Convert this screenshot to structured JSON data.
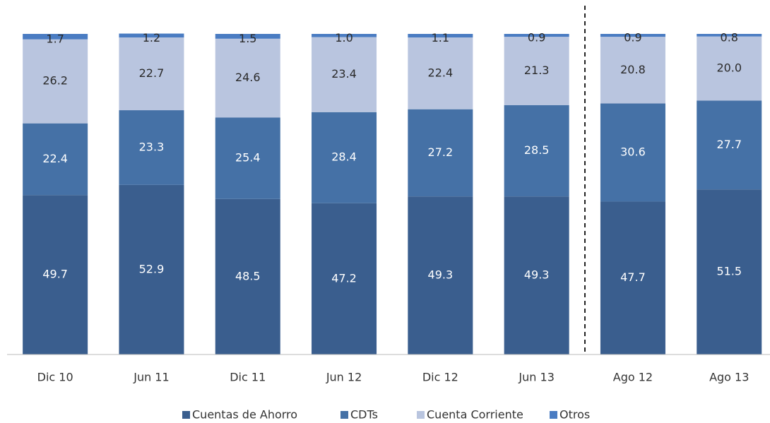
{
  "chart_data": {
    "type": "stacked_bar",
    "categories": [
      "Dic 10",
      "Jun 11",
      "Dic 11",
      "Jun 12",
      "Dic 12",
      "Jun 13",
      "Ago 12",
      "Ago 13"
    ],
    "series": [
      {
        "name": "Cuentas de Ahorro",
        "color": "#3a5e8e",
        "values": [
          49.7,
          52.9,
          48.5,
          47.2,
          49.3,
          49.3,
          47.7,
          51.5
        ],
        "value_labels": [
          "49.7",
          "52.9",
          "48.5",
          "47.2",
          "49.3",
          "49.3",
          "47.7",
          "51.5"
        ]
      },
      {
        "name": "CDTs",
        "color": "#4571a6",
        "values": [
          22.4,
          23.3,
          25.4,
          28.4,
          27.2,
          28.5,
          30.6,
          27.7
        ],
        "value_labels": [
          "22.4",
          "23.3",
          "25.4",
          "28.4",
          "27.2",
          "28.5",
          "30.6",
          "27.7"
        ]
      },
      {
        "name": "Cuenta Corriente",
        "color": "#b9c5df",
        "values": [
          26.2,
          22.7,
          24.6,
          23.4,
          22.4,
          21.3,
          20.8,
          20.0
        ],
        "value_labels": [
          "26.2",
          "22.7",
          "24.6",
          "23.4",
          "22.4",
          "21.3",
          "20.8",
          "20.0"
        ]
      },
      {
        "name": "Otros",
        "color": "#4a7cc2",
        "values": [
          1.7,
          1.2,
          1.5,
          1.0,
          1.1,
          0.9,
          0.9,
          0.8
        ],
        "value_labels": [
          "1.7",
          "1.2",
          "1.5",
          "1.0",
          "1.1",
          "0.9",
          "0.9",
          "0.8"
        ]
      }
    ],
    "ylim": [
      0,
      100
    ]
  }
}
